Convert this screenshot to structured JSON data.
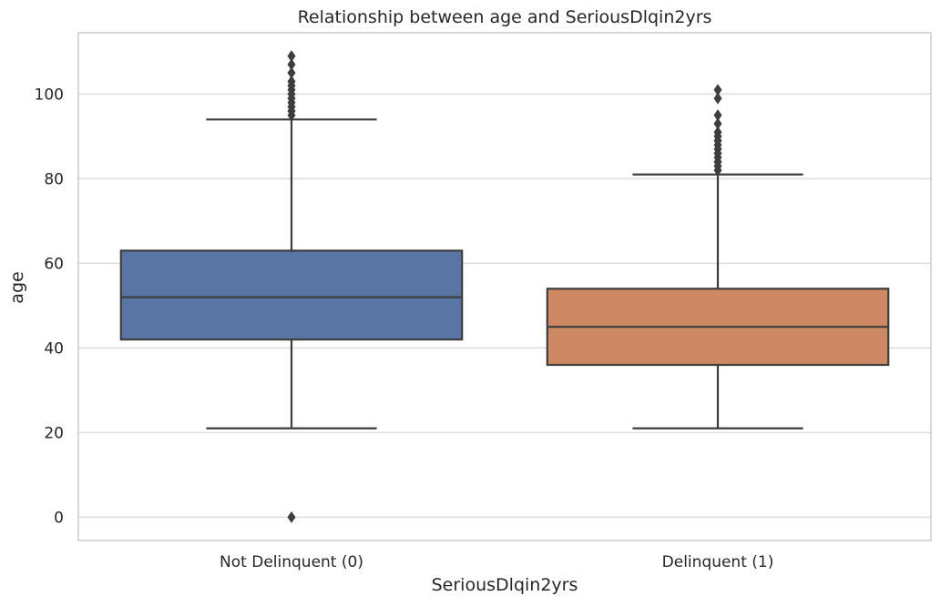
{
  "chart_data": {
    "type": "box",
    "title": "Relationship between age and SeriousDlqin2yrs",
    "xlabel": "SeriousDlqin2yrs",
    "ylabel": "age",
    "categories": [
      "Not Delinquent (0)",
      "Delinquent (1)"
    ],
    "ylim": [
      -5.5,
      114.5
    ],
    "yticks": [
      0,
      20,
      40,
      60,
      80,
      100
    ],
    "grid": true,
    "boxes": [
      {
        "category": "Not Delinquent (0)",
        "color": "#5975a4",
        "whisker_low": 21,
        "q1": 42,
        "median": 52,
        "q3": 63,
        "whisker_high": 94,
        "outliers": [
          0,
          95,
          96,
          97,
          98,
          99,
          100,
          101,
          102,
          103,
          105,
          107,
          109
        ]
      },
      {
        "category": "Delinquent (1)",
        "color": "#cc8963",
        "whisker_low": 21,
        "q1": 36,
        "median": 45,
        "q3": 54,
        "whisker_high": 81,
        "outliers": [
          82,
          83,
          84,
          85,
          86,
          87,
          88,
          89,
          90,
          91,
          93,
          95,
          99,
          101
        ]
      }
    ]
  },
  "colors": {
    "grid": "#dcdcdc",
    "frame": "#cccccc",
    "line": "#3d3d3d",
    "text": "#262626"
  }
}
